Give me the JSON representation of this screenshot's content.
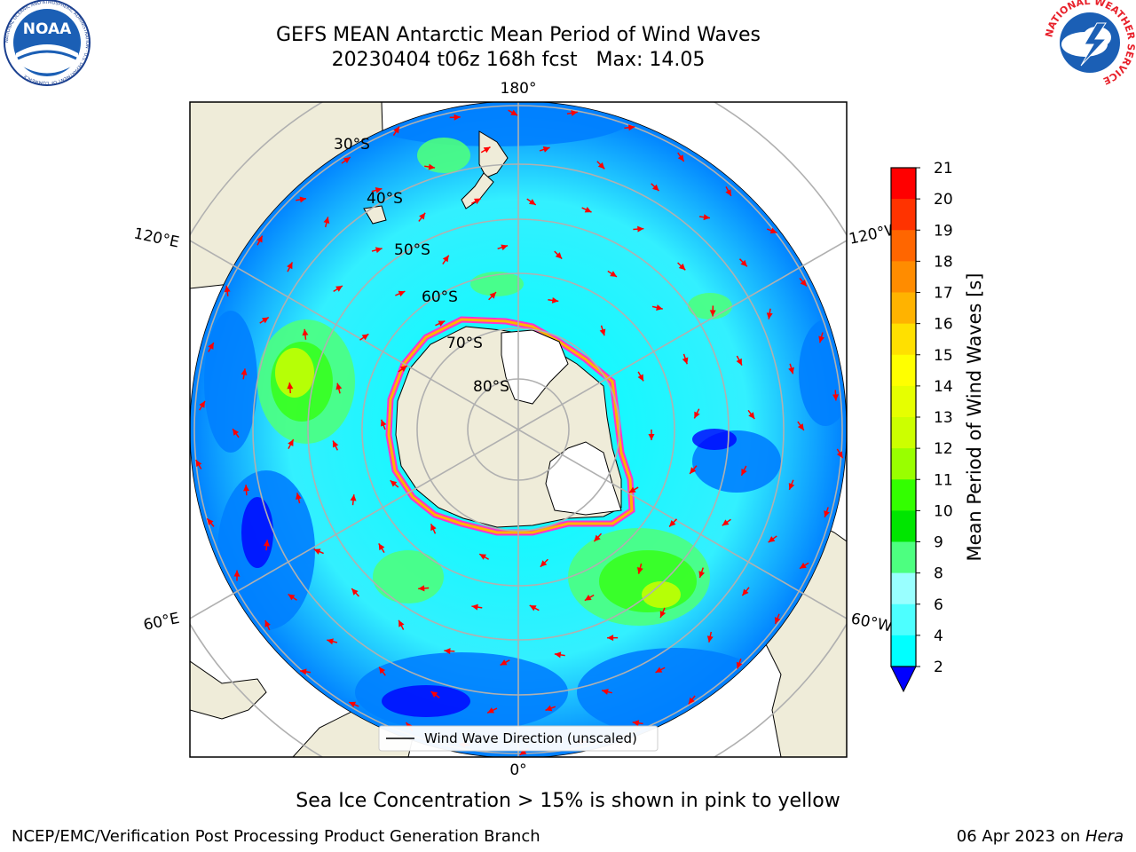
{
  "title_line1": "GEFS MEAN Antarctic Mean Period of Wind Waves",
  "title_line2": "20230404 t06z 168h fcst   Max: 14.05",
  "logo_left": "NOAA",
  "logo_left_ring": "NATIONAL OCEANIC AND ATMOSPHERIC ADMINISTRATION · U.S. DEPARTMENT OF COMMERCE",
  "logo_right_ring": "NATIONAL WEATHER SERVICE",
  "longitude_labels": {
    "top": "180°",
    "bottom": "0°",
    "upper_left": "120°E",
    "upper_right": "120°W",
    "lower_left": "60°E",
    "lower_right": "60°W"
  },
  "latitude_labels": [
    "30°S",
    "40°S",
    "50°S",
    "60°S",
    "70°S",
    "80°S"
  ],
  "legend_label": "Wind Wave Direction (unscaled)",
  "colorbar": {
    "label": "Mean Period of Wind Waves [s]",
    "ticks": [
      "21",
      "20",
      "19",
      "18",
      "17",
      "16",
      "15",
      "14",
      "13",
      "12",
      "11",
      "10",
      "9",
      "8",
      "6",
      "4",
      "2"
    ],
    "colors": [
      "#ff0000",
      "#ff3300",
      "#ff6600",
      "#ff8c00",
      "#ffb300",
      "#ffe000",
      "#ffff00",
      "#e6ff00",
      "#ccff00",
      "#99ff00",
      "#33ff00",
      "#00e600",
      "#4dff80",
      "#99ffff",
      "#4dffff",
      "#00ffff",
      "#0080ff",
      "#0000ff"
    ]
  },
  "map_colors": {
    "land": "#efecd9",
    "ocean_low": "#0080ff",
    "ocean_mid": "#00e5ff",
    "ocean_high": "#4dff80",
    "ice_edge": "#ff33cc",
    "ice_yellow": "#ffb300",
    "arrows": "#ff0000"
  },
  "note": "Sea Ice Concentration > 15% is shown in pink to yellow",
  "footer_left": "NCEP/EMC/Verification Post Processing Product Generation Branch",
  "footer_right_date": "06 Apr 2023 on ",
  "footer_right_machine": "Hera"
}
